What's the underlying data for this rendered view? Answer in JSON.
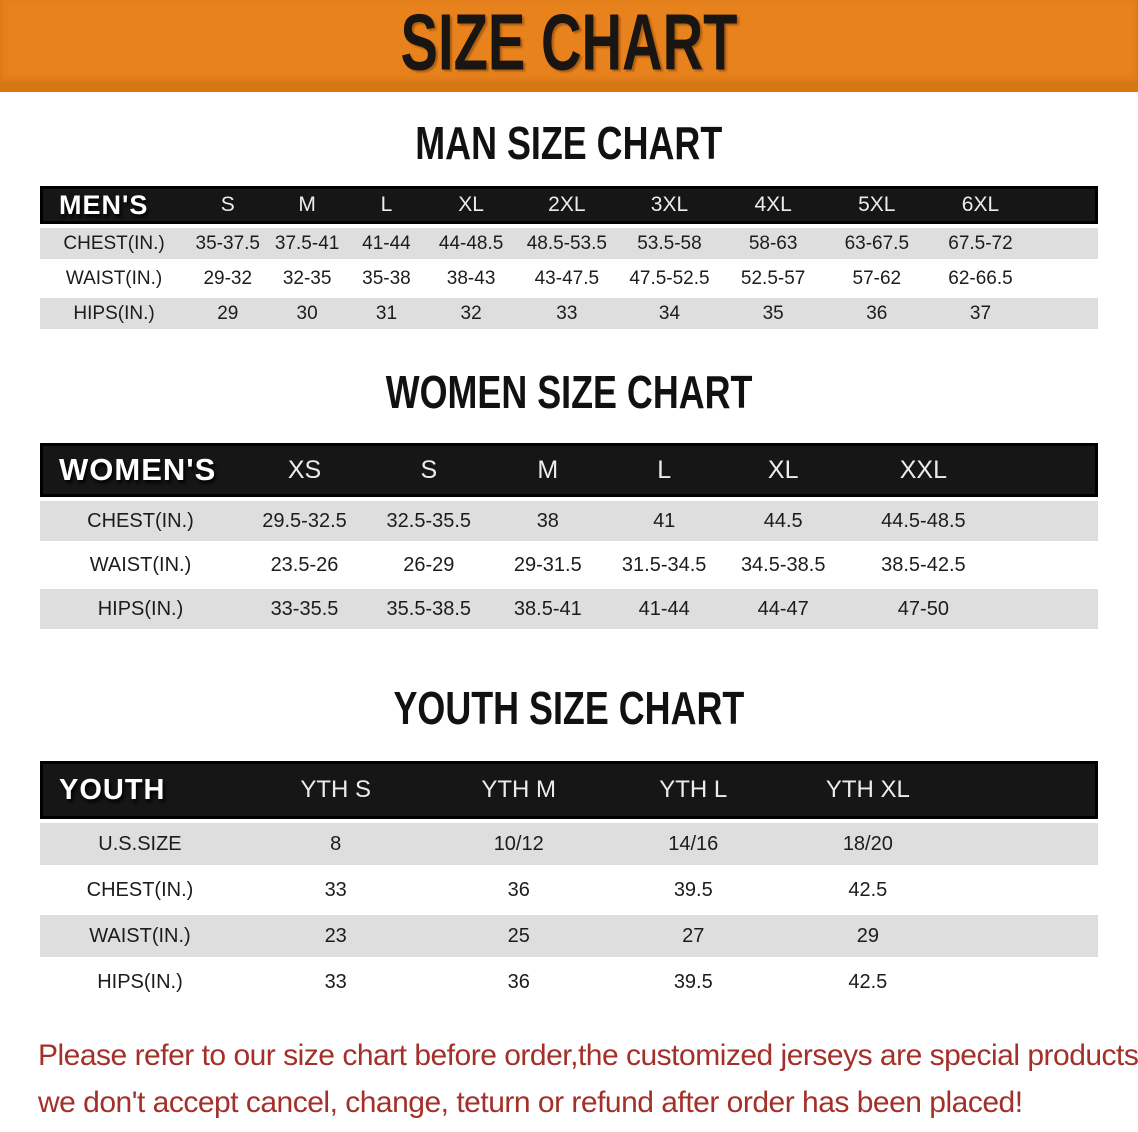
{
  "banner": {
    "title": "SIZE CHART"
  },
  "colors": {
    "banner_bg": "#E8821C",
    "banner_border": "#D9760E",
    "header_bar_bg": "#161616",
    "row_alt_bg": "#DEDEDE",
    "footer_text": "#A33029"
  },
  "sections": [
    {
      "heading": "MAN SIZE CHART",
      "table": {
        "corner_label": "MEN'S",
        "size_headers": [
          "S",
          "M",
          "L",
          "XL",
          "2XL",
          "3XL",
          "4XL",
          "5XL",
          "6XL"
        ],
        "rows": [
          {
            "label": "CHEST(IN.)",
            "values": [
              "35-37.5",
              "37.5-41",
              "41-44",
              "44-48.5",
              "48.5-53.5",
              "53.5-58",
              "58-63",
              "63-67.5",
              "67.5-72"
            ]
          },
          {
            "label": "WAIST(IN.)",
            "values": [
              "29-32",
              "32-35",
              "35-38",
              "38-43",
              "43-47.5",
              "47.5-52.5",
              "52.5-57",
              "57-62",
              "62-66.5"
            ]
          },
          {
            "label": "HIPS(IN.)",
            "values": [
              "29",
              "30",
              "31",
              "32",
              "33",
              "34",
              "35",
              "36",
              "37"
            ]
          }
        ]
      }
    },
    {
      "heading": "WOMEN SIZE CHART",
      "table": {
        "corner_label": "WOMEN'S",
        "size_headers": [
          "XS",
          "S",
          "M",
          "L",
          "XL",
          "XXL"
        ],
        "rows": [
          {
            "label": "CHEST(IN.)",
            "values": [
              "29.5-32.5",
              "32.5-35.5",
              "38",
              "41",
              "44.5",
              "44.5-48.5"
            ]
          },
          {
            "label": "WAIST(IN.)",
            "values": [
              "23.5-26",
              "26-29",
              "29-31.5",
              "31.5-34.5",
              "34.5-38.5",
              "38.5-42.5"
            ]
          },
          {
            "label": "HIPS(IN.)",
            "values": [
              "33-35.5",
              "35.5-38.5",
              "38.5-41",
              "41-44",
              "44-47",
              "47-50"
            ]
          }
        ]
      }
    },
    {
      "heading": "YOUTH SIZE CHART",
      "table": {
        "corner_label": "YOUTH",
        "size_headers": [
          "YTH S",
          "YTH M",
          "YTH L",
          "YTH XL"
        ],
        "rows": [
          {
            "label": "U.S.SIZE",
            "values": [
              "8",
              "10/12",
              "14/16",
              "18/20"
            ]
          },
          {
            "label": "CHEST(IN.)",
            "values": [
              "33",
              "36",
              "39.5",
              "42.5"
            ]
          },
          {
            "label": "WAIST(IN.)",
            "values": [
              "23",
              "25",
              "27",
              "29"
            ]
          },
          {
            "label": "HIPS(IN.)",
            "values": [
              "33",
              "36",
              "39.5",
              "42.5"
            ]
          }
        ]
      }
    }
  ],
  "footer": {
    "line1": "Please refer to our size chart before order,the customized jerseys are special products,",
    "line2": "we don't accept cancel, change, teturn or refund after order has been placed!"
  }
}
